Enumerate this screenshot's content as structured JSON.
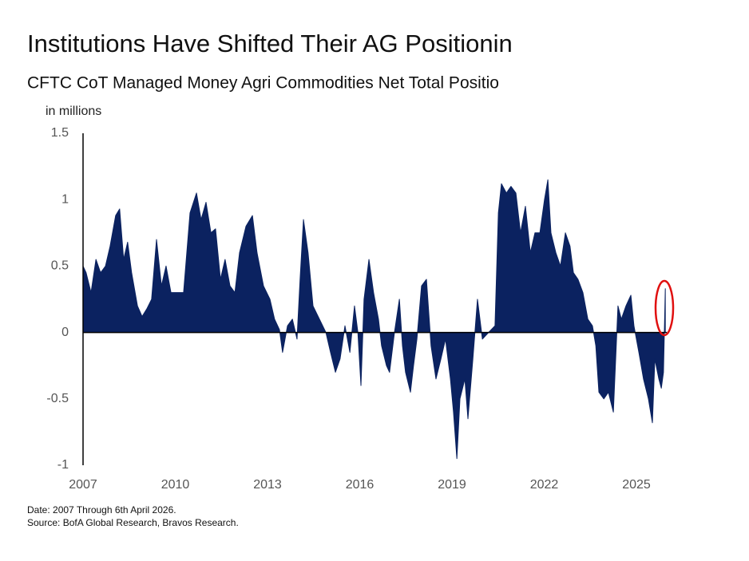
{
  "chart_data": {
    "type": "area",
    "title": "Institutions Have Shifted Their AG Positionin",
    "subtitle": "CFTC CoT Managed Money Agri Commodities Net Total Positio",
    "y_label": "in millions",
    "notes": [
      "Date: 2007 Through 6th April 2026.",
      "Source: BofA Global Research, Bravos Research."
    ],
    "color": "#0b2260",
    "xlim": [
      2007,
      2027
    ],
    "xticks": [
      2007,
      2010,
      2013,
      2016,
      2019,
      2022,
      2025
    ],
    "ylim": [
      -1,
      1.5
    ],
    "yticks": [
      -1,
      -0.5,
      0,
      0.5,
      1,
      1.5
    ],
    "x": [
      2007.0,
      2007.1,
      2007.26,
      2007.42,
      2007.57,
      2007.73,
      2007.88,
      2008.06,
      2008.19,
      2008.32,
      2008.45,
      2008.58,
      2008.77,
      2008.92,
      2009.08,
      2009.23,
      2009.39,
      2009.55,
      2009.7,
      2009.86,
      2010.27,
      2010.48,
      2010.69,
      2010.84,
      2011.0,
      2011.16,
      2011.31,
      2011.47,
      2011.62,
      2011.78,
      2011.94,
      2012.09,
      2012.3,
      2012.51,
      2012.66,
      2012.87,
      2013.08,
      2013.23,
      2013.39,
      2013.49,
      2013.65,
      2013.81,
      2013.96,
      2014.06,
      2014.17,
      2014.32,
      2014.48,
      2014.69,
      2014.9,
      2015.05,
      2015.21,
      2015.36,
      2015.52,
      2015.68,
      2015.83,
      2015.94,
      2016.04,
      2016.14,
      2016.3,
      2016.45,
      2016.61,
      2016.71,
      2016.87,
      2016.97,
      2017.13,
      2017.29,
      2017.39,
      2017.49,
      2017.65,
      2017.75,
      2017.86,
      2018.01,
      2018.17,
      2018.32,
      2018.48,
      2018.64,
      2018.79,
      2018.95,
      2019.05,
      2019.16,
      2019.26,
      2019.42,
      2019.52,
      2019.68,
      2019.83,
      2019.99,
      2020.19,
      2020.4,
      2020.51,
      2020.61,
      2020.77,
      2020.92,
      2021.08,
      2021.23,
      2021.39,
      2021.55,
      2021.7,
      2021.86,
      2022.01,
      2022.12,
      2022.22,
      2022.38,
      2022.53,
      2022.69,
      2022.84,
      2022.95,
      2023.1,
      2023.26,
      2023.42,
      2023.57,
      2023.68,
      2023.78,
      2023.94,
      2024.09,
      2024.25,
      2024.4,
      2024.51,
      2024.66,
      2024.82,
      2024.92,
      2025.08,
      2025.23,
      2025.39,
      2025.52,
      2025.6,
      2025.73,
      2025.81,
      2025.88,
      2025.94
    ],
    "values": [
      0.5,
      0.45,
      0.3,
      0.55,
      0.45,
      0.5,
      0.65,
      0.88,
      0.93,
      0.55,
      0.68,
      0.45,
      0.2,
      0.12,
      0.18,
      0.25,
      0.7,
      0.35,
      0.5,
      0.3,
      0.3,
      0.9,
      1.05,
      0.85,
      0.98,
      0.75,
      0.78,
      0.4,
      0.55,
      0.35,
      0.3,
      0.6,
      0.8,
      0.88,
      0.6,
      0.35,
      0.25,
      0.1,
      0.02,
      -0.15,
      0.05,
      0.1,
      -0.05,
      0.4,
      0.85,
      0.6,
      0.2,
      0.1,
      0.0,
      -0.15,
      -0.3,
      -0.2,
      0.05,
      -0.15,
      0.2,
      0.0,
      -0.4,
      0.25,
      0.55,
      0.3,
      0.1,
      -0.1,
      -0.25,
      -0.3,
      0.0,
      0.25,
      -0.1,
      -0.3,
      -0.45,
      -0.25,
      -0.05,
      0.35,
      0.4,
      -0.1,
      -0.35,
      -0.2,
      -0.05,
      -0.35,
      -0.6,
      -0.95,
      -0.5,
      -0.35,
      -0.65,
      -0.2,
      0.25,
      -0.05,
      0.0,
      0.05,
      0.9,
      1.12,
      1.05,
      1.1,
      1.05,
      0.75,
      0.95,
      0.6,
      0.75,
      0.75,
      1.0,
      1.15,
      0.75,
      0.6,
      0.5,
      0.75,
      0.65,
      0.45,
      0.4,
      0.3,
      0.1,
      0.05,
      -0.1,
      -0.45,
      -0.5,
      -0.45,
      -0.6,
      0.2,
      0.1,
      0.2,
      0.28,
      0.05,
      -0.15,
      -0.35,
      -0.5,
      -0.68,
      -0.2,
      -0.35,
      -0.42,
      -0.3,
      0.33
    ]
  }
}
